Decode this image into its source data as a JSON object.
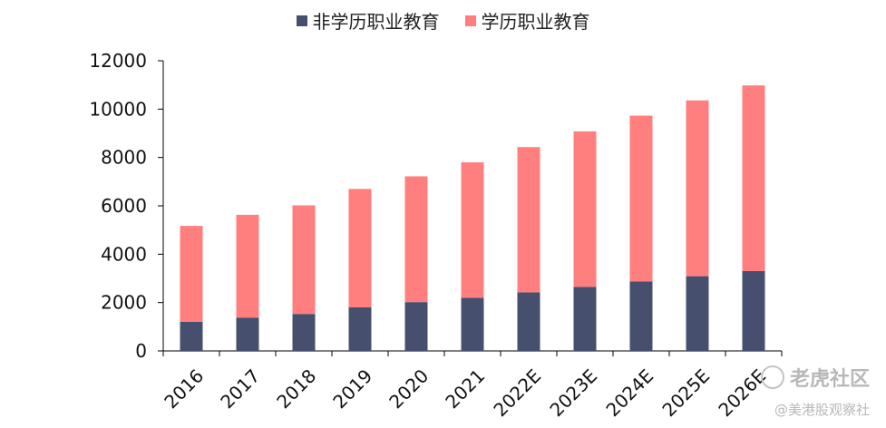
{
  "chart_data": {
    "type": "bar",
    "stacked": true,
    "categories": [
      "2016",
      "2017",
      "2018",
      "2019",
      "2020",
      "2021",
      "2022E",
      "2023E",
      "2024E",
      "2025E",
      "2026E"
    ],
    "series": [
      {
        "name": "非学历职业教育",
        "color": "#46506e",
        "values": [
          1200,
          1380,
          1530,
          1800,
          2020,
          2200,
          2420,
          2650,
          2870,
          3090,
          3300
        ]
      },
      {
        "name": "学历职业教育",
        "color": "#ff7f7f",
        "values": [
          3970,
          4250,
          4490,
          4900,
          5200,
          5600,
          6010,
          6430,
          6860,
          7270,
          7680
        ]
      }
    ],
    "yticks": [
      "0",
      "2000",
      "4000",
      "6000",
      "8000",
      "10000",
      "12000"
    ],
    "ylim": [
      0,
      12000
    ],
    "grid": false,
    "legend_position": "top-center"
  },
  "watermark": {
    "logo_text": "老虎社区",
    "handle": "@美港股观察社"
  }
}
